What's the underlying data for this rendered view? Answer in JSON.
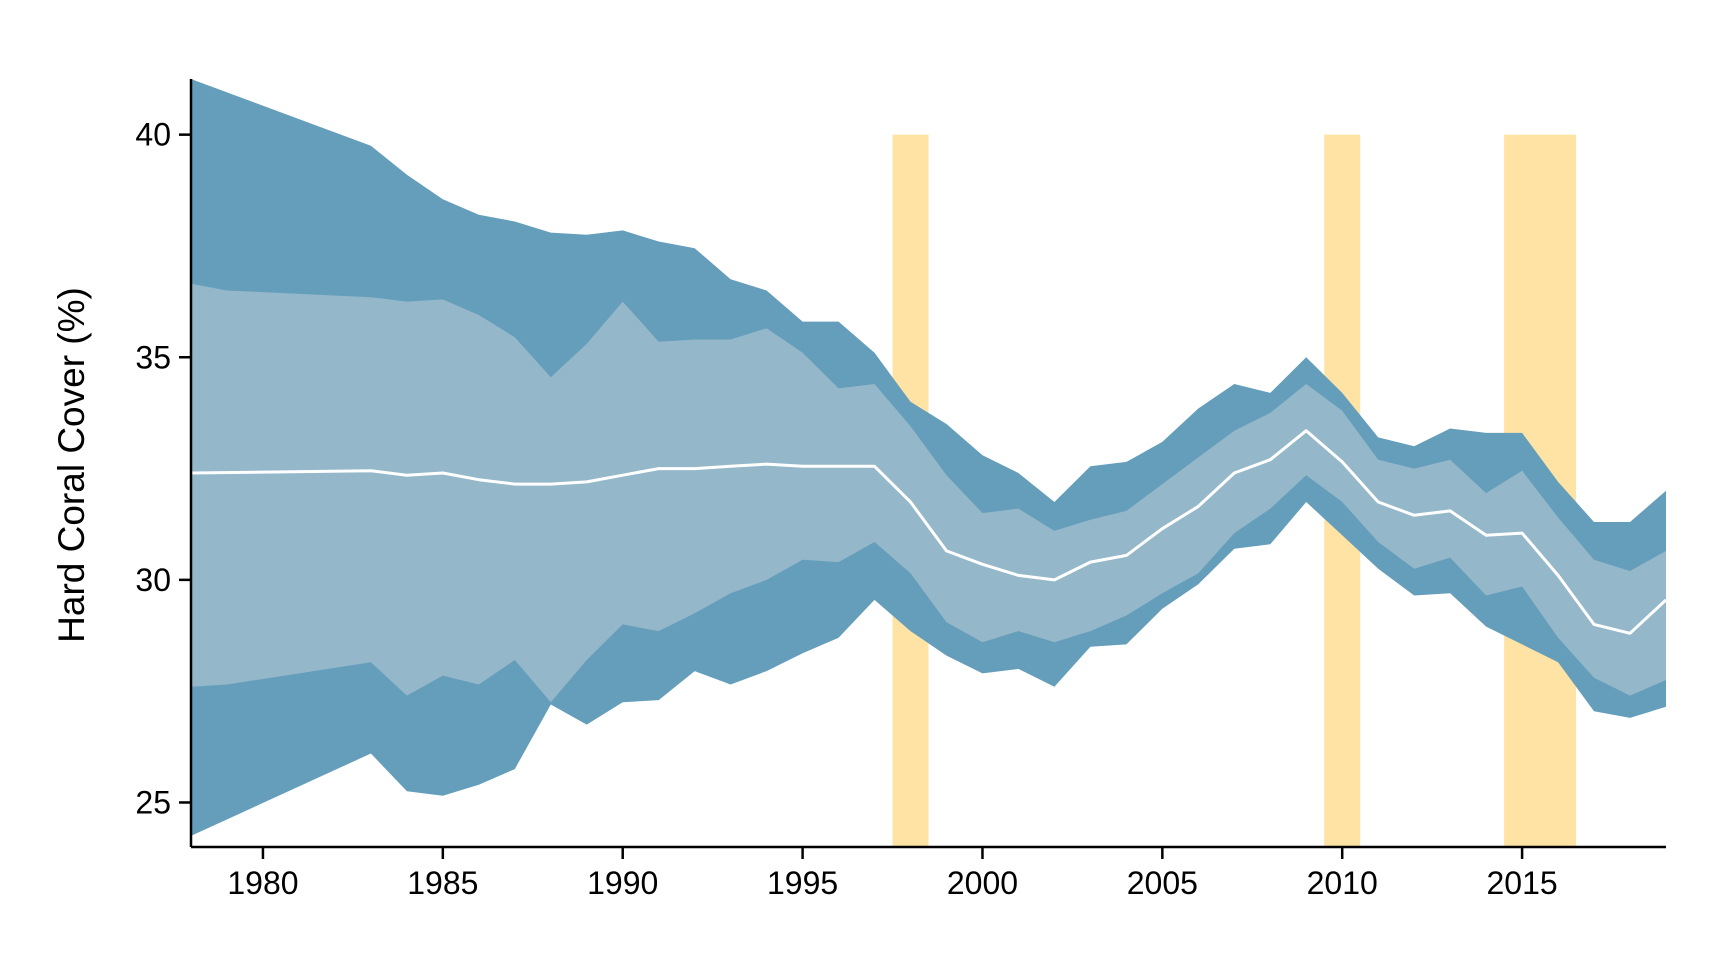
{
  "chart_data": {
    "type": "area",
    "ylabel": "Hard Coral Cover (%)",
    "xlabel": "",
    "xlim": [
      1978,
      2019
    ],
    "ylim": [
      24,
      41.25
    ],
    "x_ticks": [
      1980,
      1985,
      1990,
      1995,
      2000,
      2005,
      2010,
      2015
    ],
    "y_ticks": [
      25,
      30,
      35,
      40
    ],
    "grid": false,
    "legend": "none",
    "colors": {
      "outer_band": "#659EBB",
      "inner_band": "#94B7C9",
      "mean_line": "#FFFFFF",
      "highlight": "#FEE3A4",
      "axis": "#000000"
    },
    "highlight_periods": [
      [
        1997.5,
        1998.5
      ],
      [
        2009.5,
        2010.5
      ],
      [
        2014.5,
        2016.5
      ]
    ],
    "highlight_top": 40,
    "series": [
      {
        "role": "outer-band",
        "x": [
          1978,
          1983,
          1984,
          1985,
          1986,
          1987,
          1988,
          1989,
          1990,
          1991,
          1992,
          1993,
          1994,
          1995,
          1996,
          1997,
          1998,
          1999,
          2000,
          2001,
          2002,
          2003,
          2004,
          2005,
          2006,
          2007,
          2008,
          2009,
          2010,
          2011,
          2012,
          2013,
          2014,
          2015,
          2016,
          2017,
          2018,
          2019
        ],
        "upper": [
          41.25,
          39.75,
          39.1,
          38.55,
          38.2,
          38.05,
          37.8,
          37.75,
          37.85,
          37.6,
          37.45,
          36.75,
          36.5,
          35.8,
          35.8,
          35.1,
          34.0,
          33.5,
          32.8,
          32.4,
          31.75,
          32.55,
          32.65,
          33.1,
          33.85,
          34.4,
          34.2,
          35.0,
          34.2,
          33.2,
          33.0,
          33.4,
          33.3,
          33.3,
          32.2,
          31.3,
          31.3,
          32.0
        ],
        "lower": [
          24.25,
          26.1,
          25.25,
          25.15,
          25.4,
          25.75,
          27.2,
          26.75,
          27.25,
          27.3,
          27.95,
          27.65,
          27.95,
          28.35,
          28.7,
          29.55,
          28.85,
          28.3,
          27.9,
          28.0,
          27.6,
          28.5,
          28.55,
          29.35,
          29.9,
          30.7,
          30.8,
          31.75,
          31.0,
          30.25,
          29.65,
          29.7,
          28.95,
          28.55,
          28.15,
          27.05,
          26.9,
          27.15
        ]
      },
      {
        "role": "inner-band",
        "x": [
          1978,
          1979,
          1983,
          1984,
          1985,
          1986,
          1987,
          1988,
          1989,
          1990,
          1991,
          1992,
          1993,
          1994,
          1995,
          1996,
          1997,
          1998,
          1999,
          2000,
          2001,
          2002,
          2003,
          2004,
          2005,
          2006,
          2007,
          2008,
          2009,
          2010,
          2011,
          2012,
          2013,
          2014,
          2015,
          2016,
          2017,
          2018,
          2019
        ],
        "upper": [
          36.65,
          36.5,
          36.35,
          36.25,
          36.3,
          35.95,
          35.45,
          34.55,
          35.3,
          36.25,
          35.35,
          35.4,
          35.4,
          35.65,
          35.1,
          34.3,
          34.4,
          33.45,
          32.35,
          31.5,
          31.6,
          31.1,
          31.35,
          31.55,
          32.15,
          32.75,
          33.35,
          33.75,
          34.4,
          33.8,
          32.7,
          32.5,
          32.7,
          31.95,
          32.45,
          31.4,
          30.45,
          30.2,
          30.65
        ],
        "lower": [
          27.6,
          27.65,
          28.15,
          27.4,
          27.85,
          27.65,
          28.2,
          27.25,
          28.2,
          29.0,
          28.85,
          29.25,
          29.7,
          30.0,
          30.45,
          30.4,
          30.85,
          30.15,
          29.05,
          28.6,
          28.85,
          28.6,
          28.85,
          29.2,
          29.7,
          30.15,
          31.05,
          31.6,
          32.35,
          31.75,
          30.85,
          30.25,
          30.5,
          29.65,
          29.85,
          28.7,
          27.8,
          27.4,
          27.75
        ]
      },
      {
        "role": "mean-line",
        "x": [
          1978,
          1983,
          1984,
          1985,
          1986,
          1987,
          1988,
          1989,
          1990,
          1991,
          1992,
          1993,
          1994,
          1995,
          1996,
          1997,
          1998,
          1999,
          2000,
          2001,
          2002,
          2003,
          2004,
          2005,
          2006,
          2007,
          2008,
          2009,
          2010,
          2011,
          2012,
          2013,
          2014,
          2015,
          2016,
          2017,
          2018,
          2019
        ],
        "values": [
          32.4,
          32.45,
          32.35,
          32.4,
          32.25,
          32.15,
          32.15,
          32.2,
          32.35,
          32.5,
          32.5,
          32.55,
          32.6,
          32.55,
          32.55,
          32.55,
          31.75,
          30.65,
          30.35,
          30.1,
          30.0,
          30.4,
          30.55,
          31.15,
          31.65,
          32.4,
          32.7,
          33.35,
          32.65,
          31.75,
          31.45,
          31.55,
          31.0,
          31.05,
          30.1,
          29.0,
          28.8,
          29.55
        ]
      }
    ]
  }
}
